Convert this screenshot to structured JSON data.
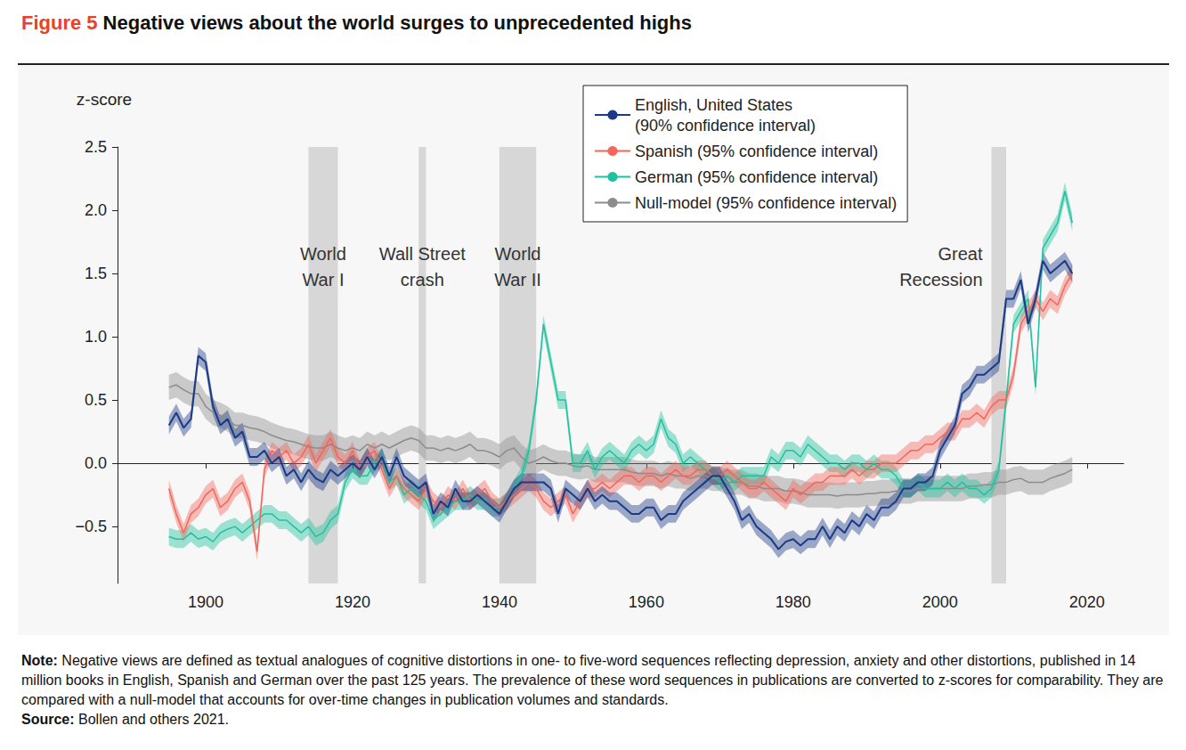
{
  "chart_data": {
    "type": "line",
    "figure_label": "Figure 5",
    "title": "Negative views about the world surges to unprecedented highs",
    "y_label": "z-score",
    "grid": false,
    "legend": "top-right",
    "xlim": [
      1888,
      2025
    ],
    "xticks": [
      1900,
      1920,
      1940,
      1960,
      1980,
      2000,
      2020
    ],
    "ylim": [
      -0.95,
      2.5
    ],
    "yticks": [
      {
        "value": -0.5,
        "label": "−0.5"
      },
      {
        "value": 0,
        "label": "0.0"
      },
      0.5,
      {
        "value": 1,
        "label": "1.0"
      },
      1.5,
      {
        "value": 2,
        "label": "2.0"
      },
      2.5
    ],
    "shaded_periods": [
      {
        "label": "World\nWar I",
        "start": 1914,
        "end": 1918
      },
      {
        "label": "Wall Street\ncrash",
        "start": 1929,
        "end": 1930
      },
      {
        "label": "World\nWar II",
        "start": 1940,
        "end": 1945
      },
      {
        "label": "Great\nRecession",
        "start": 2007,
        "end": 2009
      }
    ],
    "x": [
      1895,
      1896,
      1897,
      1898,
      1899,
      1900,
      1901,
      1902,
      1903,
      1904,
      1905,
      1906,
      1907,
      1908,
      1909,
      1910,
      1911,
      1912,
      1913,
      1914,
      1915,
      1916,
      1917,
      1918,
      1919,
      1920,
      1921,
      1922,
      1923,
      1924,
      1925,
      1926,
      1927,
      1928,
      1929,
      1930,
      1931,
      1932,
      1933,
      1934,
      1935,
      1936,
      1937,
      1938,
      1939,
      1940,
      1941,
      1942,
      1943,
      1944,
      1945,
      1946,
      1947,
      1948,
      1949,
      1950,
      1951,
      1952,
      1953,
      1954,
      1955,
      1956,
      1957,
      1958,
      1959,
      1960,
      1961,
      1962,
      1963,
      1964,
      1965,
      1966,
      1967,
      1968,
      1969,
      1970,
      1971,
      1972,
      1973,
      1974,
      1975,
      1976,
      1977,
      1978,
      1979,
      1980,
      1981,
      1982,
      1983,
      1984,
      1985,
      1986,
      1987,
      1988,
      1989,
      1990,
      1991,
      1992,
      1993,
      1994,
      1995,
      1996,
      1997,
      1998,
      1999,
      2000,
      2001,
      2002,
      2003,
      2004,
      2005,
      2006,
      2007,
      2008,
      2009,
      2010,
      2011,
      2012,
      2013,
      2014,
      2015,
      2016,
      2017,
      2018
    ],
    "series": [
      {
        "name": "Null-model (95% confidence interval)",
        "color": "#8c8c8c",
        "ci_half_width": 0.1,
        "values": [
          0.6,
          0.62,
          0.58,
          0.55,
          0.55,
          0.45,
          0.4,
          0.38,
          0.35,
          0.3,
          0.3,
          0.28,
          0.27,
          0.25,
          0.22,
          0.2,
          0.18,
          0.17,
          0.15,
          0.13,
          0.12,
          0.12,
          0.15,
          0.12,
          0.1,
          0.12,
          0.1,
          0.15,
          0.12,
          0.15,
          0.12,
          0.15,
          0.18,
          0.2,
          0.18,
          0.12,
          0.12,
          0.1,
          0.12,
          0.1,
          0.12,
          0.15,
          0.1,
          0.1,
          0.08,
          0.05,
          0.1,
          0.12,
          0.05,
          0,
          0.02,
          0.05,
          0.02,
          0,
          0,
          -0.02,
          -0.03,
          -0.02,
          -0.05,
          -0.05,
          -0.05,
          -0.05,
          -0.05,
          -0.07,
          -0.08,
          -0.08,
          -0.08,
          -0.1,
          -0.08,
          -0.1,
          -0.1,
          -0.12,
          -0.1,
          -0.1,
          -0.12,
          -0.12,
          -0.15,
          -0.15,
          -0.15,
          -0.18,
          -0.18,
          -0.2,
          -0.2,
          -0.2,
          -0.22,
          -0.22,
          -0.23,
          -0.25,
          -0.25,
          -0.25,
          -0.25,
          -0.26,
          -0.25,
          -0.25,
          -0.25,
          -0.24,
          -0.24,
          -0.23,
          -0.23,
          -0.22,
          -0.22,
          -0.22,
          -0.2,
          -0.2,
          -0.2,
          -0.2,
          -0.2,
          -0.2,
          -0.2,
          -0.18,
          -0.18,
          -0.17,
          -0.17,
          -0.15,
          -0.15,
          -0.13,
          -0.12,
          -0.15,
          -0.15,
          -0.15,
          -0.12,
          -0.1,
          -0.08,
          -0.05
        ]
      },
      {
        "name": "German (95% confidence interval)",
        "color": "#1fc29e",
        "ci_half_width": 0.07,
        "values": [
          -0.58,
          -0.6,
          -0.6,
          -0.55,
          -0.6,
          -0.58,
          -0.62,
          -0.55,
          -0.52,
          -0.5,
          -0.55,
          -0.5,
          -0.45,
          -0.4,
          -0.4,
          -0.45,
          -0.45,
          -0.5,
          -0.55,
          -0.5,
          -0.58,
          -0.55,
          -0.45,
          -0.4,
          -0.15,
          -0.05,
          -0.1,
          -0.1,
          0,
          0.05,
          -0.15,
          -0.1,
          -0.25,
          -0.2,
          -0.25,
          -0.3,
          -0.45,
          -0.4,
          -0.35,
          -0.3,
          -0.3,
          -0.25,
          -0.3,
          -0.3,
          -0.35,
          -0.35,
          -0.3,
          -0.2,
          -0.1,
          0.1,
          0.5,
          1.1,
          0.8,
          0.5,
          0.5,
          0,
          0,
          0.1,
          -0.05,
          0.05,
          0.1,
          0.05,
          0,
          0.1,
          0.15,
          0.1,
          0.15,
          0.35,
          0.2,
          0.15,
          0,
          0.05,
          0,
          -0.05,
          -0.1,
          -0.15,
          -0.1,
          -0.15,
          -0.1,
          -0.1,
          -0.1,
          -0.1,
          0.05,
          0,
          0.1,
          0.1,
          0.05,
          0.15,
          0.1,
          0.05,
          0,
          0,
          -0.05,
          0,
          0,
          -0.05,
          0,
          -0.05,
          -0.05,
          -0.1,
          -0.2,
          -0.2,
          -0.15,
          -0.2,
          -0.2,
          -0.2,
          -0.15,
          -0.2,
          -0.15,
          -0.2,
          -0.2,
          -0.25,
          -0.2,
          -0.05,
          0.5,
          1.1,
          1.2,
          1.3,
          0.6,
          1.7,
          1.8,
          1.9,
          2.15,
          1.9
        ]
      },
      {
        "name": "Spanish (95% confidence interval)",
        "color": "#f2665b",
        "ci_half_width": 0.07,
        "values": [
          -0.2,
          -0.4,
          -0.55,
          -0.4,
          -0.35,
          -0.25,
          -0.2,
          -0.35,
          -0.3,
          -0.2,
          -0.15,
          -0.3,
          -0.7,
          -0.05,
          0.1,
          0.05,
          0.1,
          0,
          0.05,
          0.15,
          0,
          0.1,
          0.2,
          0.05,
          0,
          0.1,
          -0.05,
          0.05,
          0.1,
          -0.05,
          -0.2,
          -0.1,
          -0.2,
          -0.25,
          -0.3,
          -0.2,
          -0.3,
          -0.35,
          -0.25,
          -0.3,
          -0.2,
          -0.3,
          -0.25,
          -0.2,
          -0.3,
          -0.35,
          -0.3,
          -0.25,
          -0.2,
          -0.15,
          -0.2,
          -0.3,
          -0.35,
          -0.3,
          -0.25,
          -0.4,
          -0.3,
          -0.2,
          -0.2,
          -0.15,
          -0.2,
          -0.15,
          -0.1,
          -0.1,
          -0.15,
          -0.1,
          -0.1,
          -0.15,
          -0.1,
          -0.05,
          -0.1,
          -0.1,
          -0.05,
          -0.05,
          -0.1,
          -0.1,
          -0.05,
          -0.1,
          -0.15,
          -0.2,
          -0.2,
          -0.15,
          -0.2,
          -0.25,
          -0.3,
          -0.2,
          -0.25,
          -0.2,
          -0.15,
          -0.15,
          -0.1,
          -0.1,
          -0.1,
          -0.05,
          -0.1,
          -0.05,
          -0.05,
          0,
          0,
          0,
          0.05,
          0.1,
          0.1,
          0.15,
          0.15,
          0.2,
          0.25,
          0.25,
          0.35,
          0.35,
          0.4,
          0.35,
          0.45,
          0.5,
          0.5,
          0.7,
          1.1,
          1.2,
          1.3,
          1.2,
          1.3,
          1.25,
          1.4,
          1.5
        ]
      },
      {
        "name": "English, United States\n(90% confidence interval)",
        "color": "#1b3a86",
        "ci_half_width": 0.07,
        "values": [
          0.3,
          0.4,
          0.28,
          0.35,
          0.85,
          0.8,
          0.45,
          0.3,
          0.35,
          0.2,
          0.25,
          0.05,
          0.05,
          0.1,
          0,
          0.05,
          -0.1,
          -0.05,
          -0.15,
          -0.05,
          -0.12,
          -0.15,
          -0.05,
          -0.1,
          -0.05,
          0,
          -0.05,
          0.05,
          -0.05,
          0.05,
          -0.1,
          0.05,
          -0.1,
          -0.15,
          -0.2,
          -0.15,
          -0.4,
          -0.3,
          -0.35,
          -0.2,
          -0.3,
          -0.3,
          -0.25,
          -0.3,
          -0.35,
          -0.4,
          -0.3,
          -0.2,
          -0.15,
          -0.15,
          -0.15,
          -0.15,
          -0.2,
          -0.4,
          -0.2,
          -0.25,
          -0.3,
          -0.2,
          -0.3,
          -0.25,
          -0.3,
          -0.3,
          -0.35,
          -0.4,
          -0.4,
          -0.35,
          -0.35,
          -0.45,
          -0.4,
          -0.4,
          -0.3,
          -0.25,
          -0.2,
          -0.15,
          -0.1,
          -0.1,
          -0.2,
          -0.3,
          -0.45,
          -0.4,
          -0.5,
          -0.55,
          -0.6,
          -0.68,
          -0.62,
          -0.6,
          -0.65,
          -0.6,
          -0.6,
          -0.5,
          -0.6,
          -0.5,
          -0.55,
          -0.45,
          -0.5,
          -0.4,
          -0.45,
          -0.35,
          -0.35,
          -0.3,
          -0.2,
          -0.2,
          -0.15,
          -0.15,
          -0.1,
          0.1,
          0.2,
          0.3,
          0.55,
          0.6,
          0.7,
          0.7,
          0.75,
          0.8,
          1.3,
          1.3,
          1.45,
          1.1,
          1.3,
          1.6,
          1.5,
          1.55,
          1.6,
          1.5
        ]
      }
    ],
    "notes": [
      {
        "label": "Note:",
        "text": "Negative views are defined as textual analogues of cognitive distortions in one- to five-word sequences reflecting depression, anxiety and other distortions, published in 14 million books in English, Spanish and German over the past 125 years. The prevalence of these word sequences in publications are converted to z-scores for comparability. They are compared with a null-model that accounts for over-time changes in publication volumes and standards."
      },
      {
        "label": "Source:",
        "text": "Bollen and others 2021."
      }
    ]
  }
}
